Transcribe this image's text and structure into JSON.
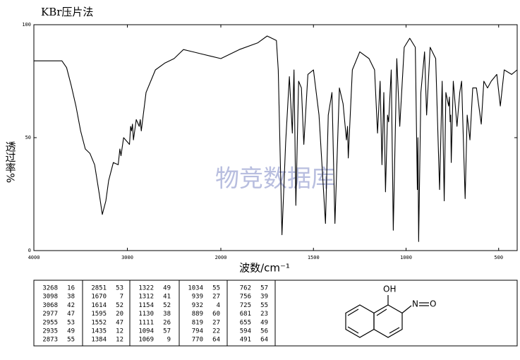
{
  "chart_data": {
    "type": "line",
    "title": "KBr压片法",
    "watermark": "物竞数据库",
    "ylabel": "透过率%",
    "xlabel": "波数/cm⁻¹",
    "xlim": [
      4000,
      400
    ],
    "x_break": 2000,
    "xticks": [
      4000,
      3000,
      2000,
      1500,
      1000,
      500
    ],
    "ylim": [
      0,
      100
    ],
    "yticks": [
      0,
      50,
      100
    ],
    "grid": false,
    "color": "#000000",
    "x": [
      4000,
      3900,
      3800,
      3750,
      3700,
      3650,
      3600,
      3550,
      3500,
      3450,
      3400,
      3350,
      3300,
      3268,
      3230,
      3200,
      3150,
      3098,
      3080,
      3068,
      3040,
      2977,
      2965,
      2955,
      2945,
      2935,
      2905,
      2873,
      2862,
      2851,
      2800,
      2700,
      2600,
      2500,
      2400,
      2300,
      2200,
      2100,
      2000,
      1900,
      1800,
      1750,
      1700,
      1690,
      1670,
      1650,
      1630,
      1614,
      1605,
      1595,
      1580,
      1565,
      1552,
      1530,
      1500,
      1470,
      1435,
      1420,
      1400,
      1384,
      1360,
      1340,
      1322,
      1316,
      1312,
      1290,
      1250,
      1200,
      1170,
      1154,
      1140,
      1130,
      1120,
      1111,
      1100,
      1094,
      1080,
      1069,
      1050,
      1034,
      1010,
      980,
      950,
      939,
      936,
      932,
      920,
      900,
      889,
      870,
      840,
      819,
      805,
      794,
      785,
      770,
      766,
      762,
      759,
      756,
      745,
      725,
      710,
      700,
      681,
      670,
      655,
      640,
      620,
      594,
      580,
      560,
      540,
      510,
      491,
      470,
      430,
      400
    ],
    "values": [
      84,
      84,
      84,
      84,
      84,
      81,
      73,
      64,
      53,
      45,
      43,
      38,
      25,
      16,
      22,
      31,
      39,
      38,
      45,
      42,
      50,
      47,
      55,
      53,
      56,
      49,
      58,
      55,
      58,
      53,
      70,
      80,
      83,
      85,
      89,
      88,
      87,
      86,
      85,
      89,
      92,
      95,
      93,
      80,
      7,
      48,
      77,
      52,
      80,
      20,
      75,
      72,
      47,
      78,
      80,
      60,
      12,
      60,
      70,
      12,
      72,
      65,
      49,
      55,
      41,
      80,
      88,
      85,
      80,
      52,
      75,
      38,
      70,
      26,
      60,
      57,
      80,
      9,
      85,
      55,
      90,
      94,
      90,
      27,
      50,
      4,
      70,
      88,
      60,
      90,
      85,
      27,
      75,
      22,
      70,
      64,
      68,
      57,
      60,
      39,
      75,
      55,
      70,
      75,
      23,
      60,
      49,
      72,
      72,
      56,
      75,
      72,
      75,
      78,
      64,
      80,
      78,
      80
    ],
    "peak_table": [
      [
        [
          3268,
          16
        ],
        [
          3098,
          38
        ],
        [
          3068,
          42
        ],
        [
          2977,
          47
        ],
        [
          2955,
          53
        ],
        [
          2935,
          49
        ],
        [
          2873,
          55
        ]
      ],
      [
        [
          2851,
          53
        ],
        [
          1670,
          7
        ],
        [
          1614,
          52
        ],
        [
          1595,
          20
        ],
        [
          1552,
          47
        ],
        [
          1435,
          12
        ],
        [
          1384,
          12
        ]
      ],
      [
        [
          1322,
          49
        ],
        [
          1312,
          41
        ],
        [
          1154,
          52
        ],
        [
          1130,
          38
        ],
        [
          1111,
          26
        ],
        [
          1094,
          57
        ],
        [
          1069,
          9
        ]
      ],
      [
        [
          1034,
          55
        ],
        [
          939,
          27
        ],
        [
          932,
          4
        ],
        [
          889,
          60
        ],
        [
          819,
          27
        ],
        [
          794,
          22
        ],
        [
          770,
          64
        ]
      ],
      [
        [
          762,
          57
        ],
        [
          756,
          39
        ],
        [
          725,
          55
        ],
        [
          681,
          23
        ],
        [
          655,
          49
        ],
        [
          594,
          56
        ],
        [
          491,
          64
        ]
      ]
    ]
  },
  "structure": {
    "labels": [
      "OH",
      "N",
      "O"
    ]
  }
}
